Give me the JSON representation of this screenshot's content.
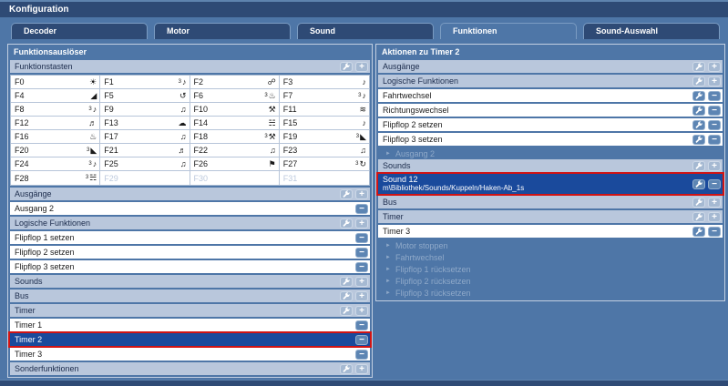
{
  "window": {
    "title": "Konfiguration"
  },
  "colors": {
    "titlebar": "#2e4a75",
    "background": "#4e76a7",
    "section_header": "#b9c7dc",
    "header_button": "#a5b9d2",
    "row_button": "#5d85b3",
    "selected_row": "#1a4a9c",
    "selection_outline": "#d01414",
    "disabled_text": "#8fa9c9"
  },
  "tabs": [
    {
      "label": "Decoder",
      "active": false
    },
    {
      "label": "Motor",
      "active": false
    },
    {
      "label": "Sound",
      "active": false
    },
    {
      "label": "Funktionen",
      "active": true
    },
    {
      "label": "Sound-Auswahl",
      "active": false
    }
  ],
  "left_panel": {
    "title": "Funktionsauslöser",
    "sections": [
      {
        "kind": "header",
        "label": "Funktionstasten",
        "buttons": [
          "edit",
          "add"
        ]
      },
      {
        "kind": "grid"
      },
      {
        "kind": "header",
        "label": "Ausgänge",
        "buttons": [
          "edit",
          "add"
        ]
      },
      {
        "kind": "row",
        "label": "Ausgang 2",
        "buttons": [
          "remove"
        ]
      },
      {
        "kind": "header",
        "label": "Logische Funktionen",
        "buttons": [
          "edit",
          "add"
        ]
      },
      {
        "kind": "row",
        "label": "Flipflop 1 setzen",
        "buttons": [
          "remove"
        ]
      },
      {
        "kind": "row",
        "label": "Flipflop 2 setzen",
        "buttons": [
          "remove"
        ]
      },
      {
        "kind": "row",
        "label": "Flipflop 3 setzen",
        "buttons": [
          "remove"
        ]
      },
      {
        "kind": "header",
        "label": "Sounds",
        "buttons": [
          "edit",
          "add"
        ]
      },
      {
        "kind": "header",
        "label": "Bus",
        "buttons": [
          "edit",
          "add"
        ]
      },
      {
        "kind": "header",
        "label": "Timer",
        "buttons": [
          "edit",
          "add"
        ]
      },
      {
        "kind": "row",
        "label": "Timer 1",
        "buttons": [
          "remove"
        ]
      },
      {
        "kind": "row",
        "label": "Timer 2",
        "buttons": [
          "remove"
        ],
        "selected": true
      },
      {
        "kind": "row",
        "label": "Timer 3",
        "buttons": [
          "remove"
        ]
      },
      {
        "kind": "header",
        "label": "Sonderfunktionen",
        "buttons": [
          "edit",
          "add"
        ]
      }
    ],
    "function_keys": [
      {
        "label": "F0",
        "sup": "",
        "glyph": "☀",
        "icon": "headlight-icon"
      },
      {
        "label": "F1",
        "sup": "3",
        "glyph": "♪",
        "icon": "horn-sound-icon"
      },
      {
        "label": "F2",
        "sup": "",
        "glyph": "☍",
        "icon": "coupler-icon"
      },
      {
        "label": "F3",
        "sup": "",
        "glyph": "♪",
        "icon": "horn-icon"
      },
      {
        "label": "F4",
        "sup": "",
        "glyph": "◢",
        "icon": "ramp-icon"
      },
      {
        "label": "F5",
        "sup": "",
        "glyph": "↺",
        "icon": "direction-loop-icon"
      },
      {
        "label": "F6",
        "sup": "3",
        "glyph": "♨",
        "icon": "firebox-icon"
      },
      {
        "label": "F7",
        "sup": "3",
        "glyph": "♪",
        "icon": "horn-sound-icon"
      },
      {
        "label": "F8",
        "sup": "3",
        "glyph": "♪",
        "icon": "horn-sound-icon"
      },
      {
        "label": "F9",
        "sup": "",
        "glyph": "♫",
        "icon": "volume-icon"
      },
      {
        "label": "F10",
        "sup": "",
        "glyph": "⚒",
        "icon": "hand-tool-icon"
      },
      {
        "label": "F11",
        "sup": "",
        "glyph": "≋",
        "icon": "whistle-steam-icon"
      },
      {
        "label": "F12",
        "sup": "",
        "glyph": "♬",
        "icon": "speaker-bars-icon"
      },
      {
        "label": "F13",
        "sup": "",
        "glyph": "☁",
        "icon": "smoke-icon"
      },
      {
        "label": "F14",
        "sup": "",
        "glyph": "☵",
        "icon": "antenna-waves-icon"
      },
      {
        "label": "F15",
        "sup": "",
        "glyph": "♪",
        "icon": "vertical-speaker-icon"
      },
      {
        "label": "F16",
        "sup": "",
        "glyph": "♨",
        "icon": "steam-pot-icon"
      },
      {
        "label": "F17",
        "sup": "",
        "glyph": "♫",
        "icon": "speaker-icon"
      },
      {
        "label": "F18",
        "sup": "3",
        "glyph": "⚒",
        "icon": "coal-shovel-icon"
      },
      {
        "label": "F19",
        "sup": "3",
        "glyph": "◣",
        "icon": "coal-pile-icon"
      },
      {
        "label": "F20",
        "sup": "3",
        "glyph": "◣",
        "icon": "coal-pile-icon"
      },
      {
        "label": "F21",
        "sup": "",
        "glyph": "♬",
        "icon": "speaker-bars-icon"
      },
      {
        "label": "F22",
        "sup": "",
        "glyph": "♫",
        "icon": "volume-icon"
      },
      {
        "label": "F23",
        "sup": "",
        "glyph": "♫",
        "icon": "volume-icon"
      },
      {
        "label": "F24",
        "sup": "3",
        "glyph": "♪",
        "icon": "horn-sound-icon"
      },
      {
        "label": "F25",
        "sup": "",
        "glyph": "♫",
        "icon": "volume-icon"
      },
      {
        "label": "F26",
        "sup": "",
        "glyph": "⚑",
        "icon": "flag-speaker-icon"
      },
      {
        "label": "F27",
        "sup": "3",
        "glyph": "↻",
        "icon": "turnaround-icon"
      },
      {
        "label": "F28",
        "sup": "3",
        "glyph": "☵",
        "icon": "antenna-waves-icon"
      },
      {
        "label": "F29",
        "sup": "",
        "glyph": "",
        "icon": "",
        "disabled": true
      },
      {
        "label": "F30",
        "sup": "",
        "glyph": "",
        "icon": "",
        "disabled": true
      },
      {
        "label": "F31",
        "sup": "",
        "glyph": "",
        "icon": "",
        "disabled": true
      }
    ]
  },
  "right_panel": {
    "title": "Aktionen zu Timer 2",
    "sections": [
      {
        "kind": "header",
        "label": "Ausgänge",
        "buttons": [
          "edit",
          "add"
        ]
      },
      {
        "kind": "header",
        "label": "Logische Funktionen",
        "buttons": [
          "edit",
          "add"
        ]
      },
      {
        "kind": "row",
        "label": "Fahrtwechsel",
        "buttons": [
          "edit",
          "remove"
        ]
      },
      {
        "kind": "row",
        "label": "Richtungswechsel",
        "buttons": [
          "edit",
          "remove"
        ]
      },
      {
        "kind": "row",
        "label": "Flipflop 2 setzen",
        "buttons": [
          "edit",
          "remove"
        ]
      },
      {
        "kind": "row",
        "label": "Flipflop 3 setzen",
        "buttons": [
          "edit",
          "remove"
        ]
      },
      {
        "kind": "disabled",
        "label": "Ausgang 2"
      },
      {
        "kind": "header",
        "label": "Sounds",
        "buttons": [
          "edit",
          "add"
        ]
      },
      {
        "kind": "row",
        "label": "Sound 12",
        "sublabel": "m\\Bibliothek/Sounds/Kuppeln/Haken-Ab_1s",
        "buttons": [
          "edit",
          "remove"
        ],
        "selected": true
      },
      {
        "kind": "header",
        "label": "Bus",
        "buttons": [
          "edit",
          "add"
        ]
      },
      {
        "kind": "header",
        "label": "Timer",
        "buttons": [
          "edit",
          "add"
        ]
      },
      {
        "kind": "row",
        "label": "Timer 3",
        "buttons": [
          "edit",
          "remove"
        ]
      },
      {
        "kind": "disabled",
        "label": "Motor stoppen"
      },
      {
        "kind": "disabled",
        "label": "Fahrtwechsel"
      },
      {
        "kind": "disabled",
        "label": "Flipflop 1 rücksetzen"
      },
      {
        "kind": "disabled",
        "label": "Flipflop 2 rücksetzen"
      },
      {
        "kind": "disabled",
        "label": "Flipflop 3 rücksetzen"
      }
    ]
  }
}
